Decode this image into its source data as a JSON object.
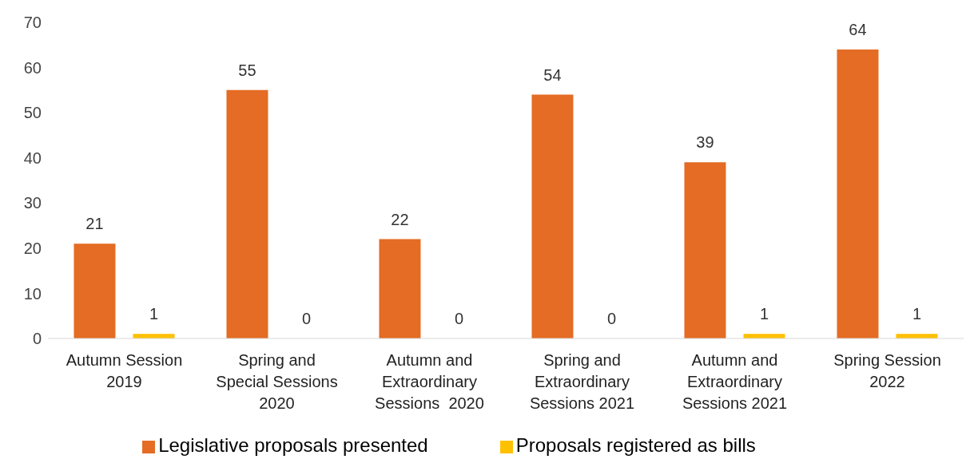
{
  "chart_data": {
    "type": "bar",
    "categories": [
      "Autumn Session 2019",
      "Spring and Special Sessions 2020",
      "Autumn and Extraordinary Sessions  2020",
      "Spring and Extraordinary Sessions 2021",
      "Autumn and Extraordinary Sessions 2021",
      "Spring Session 2022"
    ],
    "series": [
      {
        "name": "Legislative proposals presented",
        "color": "#e46c24",
        "values": [
          21,
          55,
          22,
          54,
          39,
          64
        ]
      },
      {
        "name": "Proposals registered as bills",
        "color": "#ffc000",
        "values": [
          1,
          0,
          0,
          0,
          1,
          1
        ]
      }
    ],
    "ylim": [
      0,
      70
    ],
    "yticks": [
      0,
      10,
      20,
      30,
      40,
      50,
      60,
      70
    ],
    "grid": false,
    "legend": "bottom",
    "data_labels": true
  }
}
